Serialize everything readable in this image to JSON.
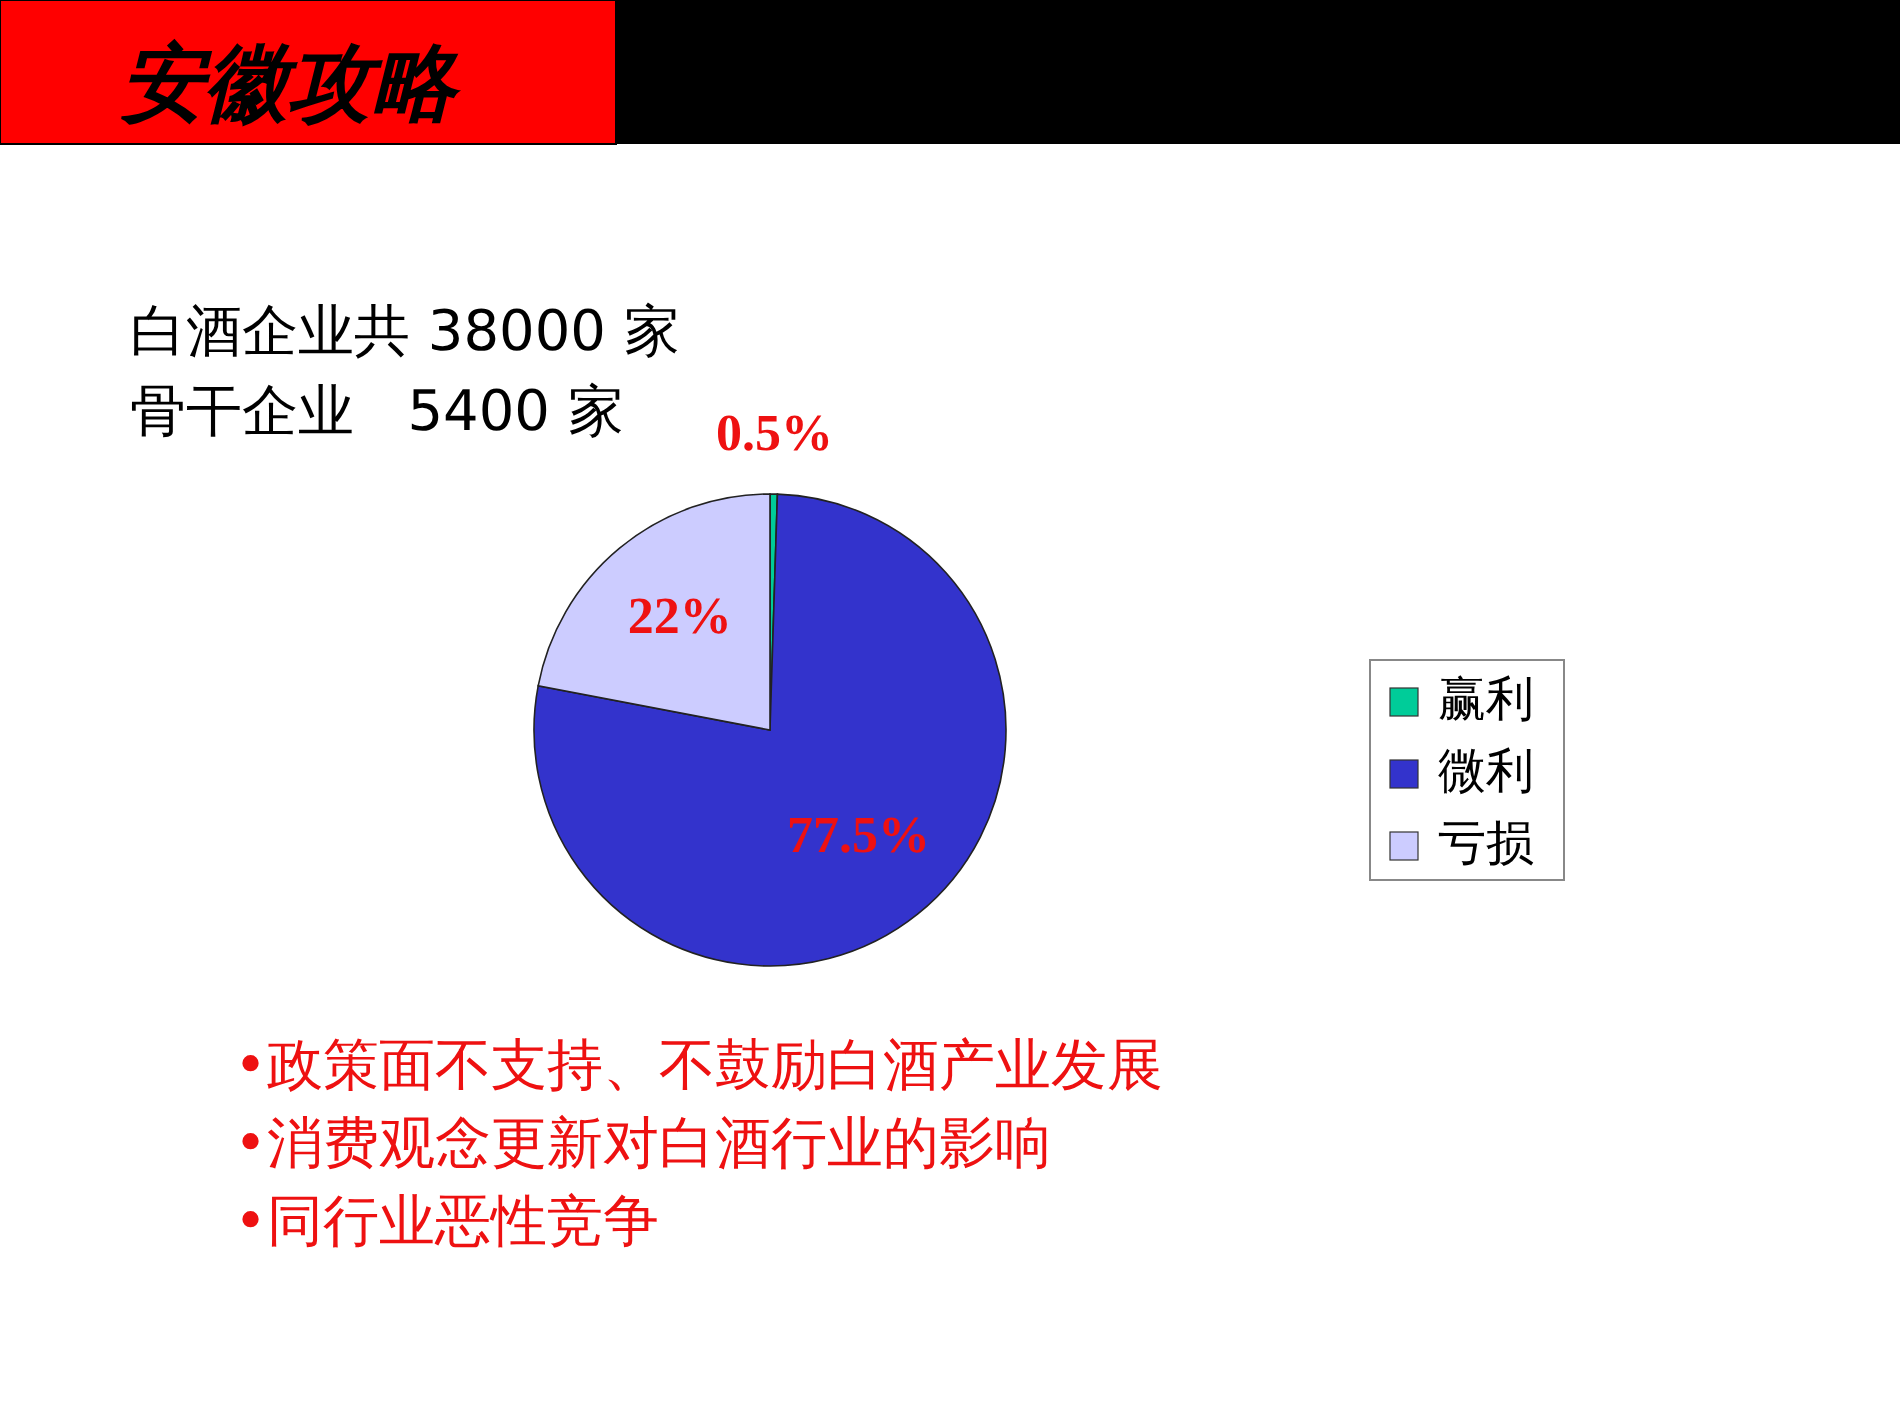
{
  "chart_data": {
    "type": "pie",
    "title": "安徽攻略",
    "categories": [
      "赢利",
      "微利",
      "亏损"
    ],
    "values": [
      0.5,
      77.5,
      22
    ],
    "value_labels": [
      "0.5%",
      "77.5%",
      "22%"
    ],
    "colors": [
      "#00cc99",
      "#3333cc",
      "#ccccff"
    ],
    "legend": "right",
    "annotations": [
      "白酒企业共 38000 家",
      "骨干企业   5400 家",
      "•政策面不支持、不鼓励白酒产业发展",
      "•消费观念更新对白酒行业的影响",
      "•同行业恶性竞争"
    ]
  }
}
